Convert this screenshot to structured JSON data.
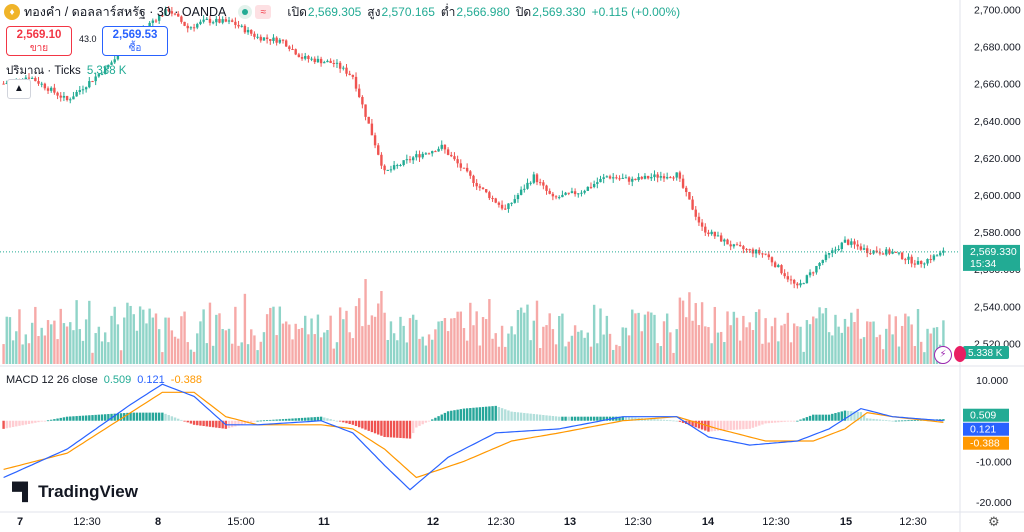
{
  "header": {
    "symbol_icon": "gold-coin-icon",
    "title": "ทองคำ / ดอลลาร์สหรัฐ · 30 · OANDA",
    "open_label": "เปิด",
    "open_value": "2,569.305",
    "high_label": "สูง",
    "high_value": "2,570.165",
    "low_label": "ต่ำ",
    "low_value": "2,566.980",
    "close_label": "ปิด",
    "close_value": "2,569.330",
    "change": "+0.115 (+0.00%)"
  },
  "trade": {
    "sell_price": "2,569.10",
    "sell_label": "ขาย",
    "spread": "43.0",
    "buy_price": "2,569.53",
    "buy_label": "ซื้อ"
  },
  "volume_panel": {
    "label": "ปริมาณ · Ticks",
    "value": "5.338 K",
    "axis_tag": "5.338 K"
  },
  "price_tag": {
    "price": "2,569.330",
    "countdown": "15:34"
  },
  "macd_panel": {
    "label": "MACD 12 26 close",
    "hist_value": "0.509",
    "macd_value": "0.121",
    "signal_value": "-0.388",
    "tag_hist": "0.509",
    "tag_macd": "0.121",
    "tag_signal": "-0.388"
  },
  "logo": {
    "text": "TradingView"
  },
  "colors": {
    "up": "#22ab94",
    "down": "#ef5350",
    "vol_up": "#8fd4c8",
    "vol_down": "#f6a9a7",
    "macd_line": "#2962ff",
    "signal_line": "#ff9800",
    "hist_up_strong": "#26a69a",
    "hist_up_weak": "#b2dfdb",
    "hist_down_strong": "#ef5350",
    "hist_down_weak": "#ffcdd2"
  },
  "chart_data": {
    "type": "candlestick",
    "price_axis": {
      "ticks": [
        "2,700.000",
        "2,680.000",
        "2,660.000",
        "2,640.000",
        "2,620.000",
        "2,600.000",
        "2,580.000",
        "2,560.000",
        "2,540.000",
        "2,520.000"
      ],
      "range": [
        2510,
        2704
      ]
    },
    "macd_axis": {
      "ticks": [
        "10.000",
        "-10.000",
        "-20.000"
      ],
      "range": [
        -22,
        13
      ]
    },
    "time_axis": [
      "7",
      "12:30",
      "8",
      "15:00",
      "11",
      "12",
      "12:30",
      "13",
      "12:30",
      "14",
      "12:30",
      "15",
      "12:30"
    ],
    "price_anchors": [
      [
        0,
        2660
      ],
      [
        8,
        2664
      ],
      [
        20,
        2651
      ],
      [
        32,
        2668
      ],
      [
        40,
        2682
      ],
      [
        47,
        2694
      ],
      [
        52,
        2700
      ],
      [
        58,
        2690
      ],
      [
        64,
        2694
      ],
      [
        72,
        2693
      ],
      [
        80,
        2685
      ],
      [
        88,
        2683
      ],
      [
        94,
        2674
      ],
      [
        104,
        2671
      ],
      [
        110,
        2664
      ],
      [
        120,
        2612
      ],
      [
        130,
        2621
      ],
      [
        138,
        2626
      ],
      [
        150,
        2604
      ],
      [
        158,
        2592
      ],
      [
        167,
        2610
      ],
      [
        173,
        2598
      ],
      [
        182,
        2602
      ],
      [
        190,
        2610
      ],
      [
        198,
        2608
      ],
      [
        205,
        2610
      ],
      [
        212,
        2611
      ],
      [
        220,
        2582
      ],
      [
        230,
        2572
      ],
      [
        240,
        2568
      ],
      [
        250,
        2550
      ],
      [
        258,
        2565
      ],
      [
        265,
        2575
      ],
      [
        272,
        2570
      ],
      [
        280,
        2569
      ],
      [
        288,
        2563
      ],
      [
        296,
        2569
      ]
    ],
    "macd": {
      "macd_anchors": [
        [
          0,
          -14
        ],
        [
          20,
          -7
        ],
        [
          40,
          4
        ],
        [
          50,
          9
        ],
        [
          60,
          6
        ],
        [
          70,
          -1
        ],
        [
          80,
          -1
        ],
        [
          100,
          0
        ],
        [
          110,
          -3
        ],
        [
          120,
          -11
        ],
        [
          128,
          -17
        ],
        [
          140,
          -9
        ],
        [
          155,
          -3
        ],
        [
          175,
          -2
        ],
        [
          195,
          1
        ],
        [
          212,
          1
        ],
        [
          222,
          -4
        ],
        [
          235,
          -6
        ],
        [
          250,
          -5
        ],
        [
          260,
          -2
        ],
        [
          270,
          3
        ],
        [
          280,
          1
        ],
        [
          296,
          0
        ]
      ],
      "signal_anchors": [
        [
          0,
          -12
        ],
        [
          20,
          -8
        ],
        [
          40,
          2
        ],
        [
          50,
          7
        ],
        [
          60,
          7
        ],
        [
          70,
          1
        ],
        [
          80,
          -1
        ],
        [
          100,
          -1
        ],
        [
          110,
          -2
        ],
        [
          120,
          -7
        ],
        [
          130,
          -14
        ],
        [
          145,
          -10
        ],
        [
          160,
          -5
        ],
        [
          175,
          -3
        ],
        [
          195,
          0
        ],
        [
          212,
          1
        ],
        [
          225,
          -2
        ],
        [
          240,
          -5
        ],
        [
          255,
          -5
        ],
        [
          265,
          -2
        ],
        [
          272,
          2
        ],
        [
          280,
          1
        ],
        [
          296,
          -0.4
        ]
      ]
    },
    "last": {
      "price": 2569.33,
      "macd_hist": 0.509,
      "macd": 0.121,
      "signal": -0.388,
      "volume": "5.338 K"
    }
  }
}
